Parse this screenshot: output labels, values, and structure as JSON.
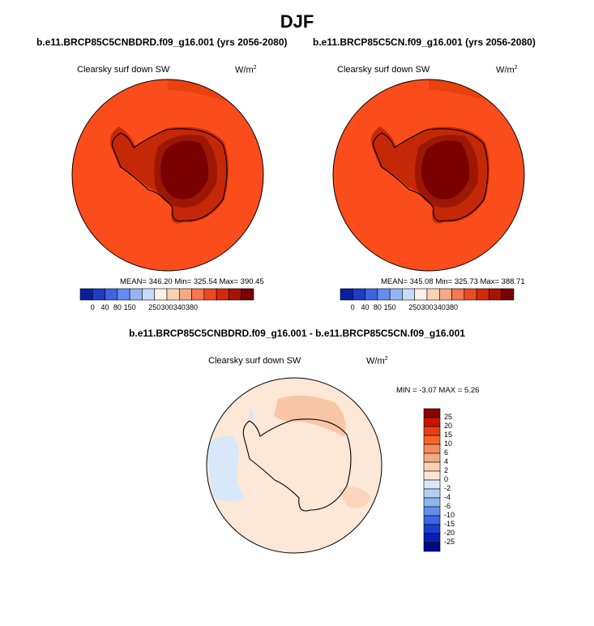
{
  "title": "DJF",
  "panels": [
    {
      "case": "b.e11.BRCP85C5CNBDRD.f09_g16.001 (yrs 2056-2080)",
      "variable": "Clearsky surf down SW",
      "units": "W/m",
      "units_exp": "2",
      "stats": "MEAN= 346.20  Min= 325.54  Max= 390.45"
    },
    {
      "case": "b.e11.BRCP85C5CN.f09_g16.001 (yrs 2056-2080)",
      "variable": "Clearsky surf down SW",
      "units": "W/m",
      "units_exp": "2",
      "stats": "MEAN= 345.08  Min= 325.73  Max= 388.71"
    }
  ],
  "abs_colorbar": {
    "colors": [
      "#0a1ea0",
      "#1e3cc8",
      "#3c64dc",
      "#648cf0",
      "#96b4f5",
      "#c8dcfa",
      "#fff0e6",
      "#fcd2b4",
      "#f8a884",
      "#f57850",
      "#ee4a20",
      "#d42a08",
      "#a81400",
      "#780000"
    ],
    "labels": [
      "0",
      "40",
      "80",
      "150",
      "250",
      "300",
      "340",
      "380"
    ],
    "label_positions": [
      1,
      2,
      3,
      4,
      6,
      7,
      8,
      9
    ]
  },
  "diff": {
    "title": "b.e11.BRCP85C5CNBDRD.f09_g16.001 - b.e11.BRCP85C5CN.f09_g16.001",
    "variable": "Clearsky surf down SW",
    "units": "W/m",
    "units_exp": "2",
    "stats": "MIN =  -3.07 MAX =   5.26"
  },
  "diff_colorbar": {
    "colors": [
      "#8c0000",
      "#c81400",
      "#e83c14",
      "#f56428",
      "#f58c5a",
      "#f5aa82",
      "#fcd2b4",
      "#fde6d6",
      "#d6e8fa",
      "#b4cdf5",
      "#8cb4f0",
      "#648cf0",
      "#3c64e6",
      "#1e3cd2",
      "#0a1eb4",
      "#000a82"
    ],
    "labels": [
      "25",
      "20",
      "15",
      "10",
      "6",
      "4",
      "2",
      "0",
      "-2",
      "-4",
      "-6",
      "-10",
      "-15",
      "-20",
      "-25"
    ]
  }
}
